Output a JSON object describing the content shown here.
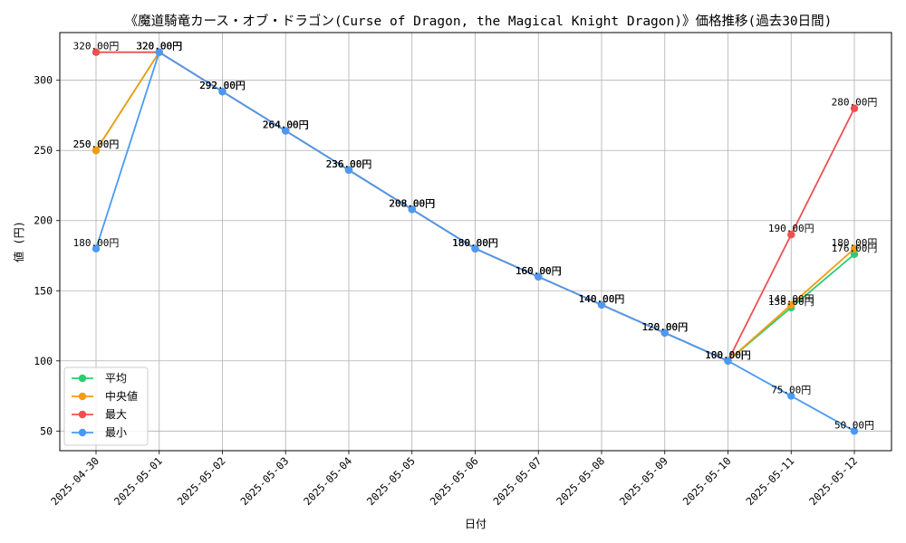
{
  "chart_data": {
    "type": "line",
    "title": "《魔道騎竜カース・オブ・ドラゴン(Curse of Dragon, the Magical Knight Dragon)》価格推移(過去30日間)",
    "xlabel": "日付",
    "ylabel": "値 (円)",
    "categories": [
      "2025-04-30",
      "2025-05-01",
      "2025-05-02",
      "2025-05-03",
      "2025-05-04",
      "2025-05-05",
      "2025-05-06",
      "2025-05-07",
      "2025-05-08",
      "2025-05-09",
      "2025-05-10",
      "2025-05-11",
      "2025-05-12"
    ],
    "yticks": [
      50,
      100,
      150,
      200,
      250,
      300
    ],
    "ylim": [
      36,
      334
    ],
    "grid": true,
    "legend_position": "lower-left",
    "value_suffix": "円",
    "series": [
      {
        "name": "平均",
        "color": "#2ecc71",
        "values": [
          250,
          320,
          292,
          264,
          236,
          208,
          180,
          160,
          140,
          120,
          100,
          138,
          176
        ]
      },
      {
        "name": "中央値",
        "color": "#f39c12",
        "values": [
          250,
          320,
          292,
          264,
          236,
          208,
          180,
          160,
          140,
          120,
          100,
          140,
          180
        ]
      },
      {
        "name": "最大",
        "color": "#ef4f4f",
        "values": [
          320,
          320,
          292,
          264,
          236,
          208,
          180,
          160,
          140,
          120,
          100,
          190,
          280
        ]
      },
      {
        "name": "最小",
        "color": "#4a9af5",
        "values": [
          180,
          320,
          292,
          264,
          236,
          208,
          180,
          160,
          140,
          120,
          100,
          75,
          50
        ]
      }
    ]
  }
}
